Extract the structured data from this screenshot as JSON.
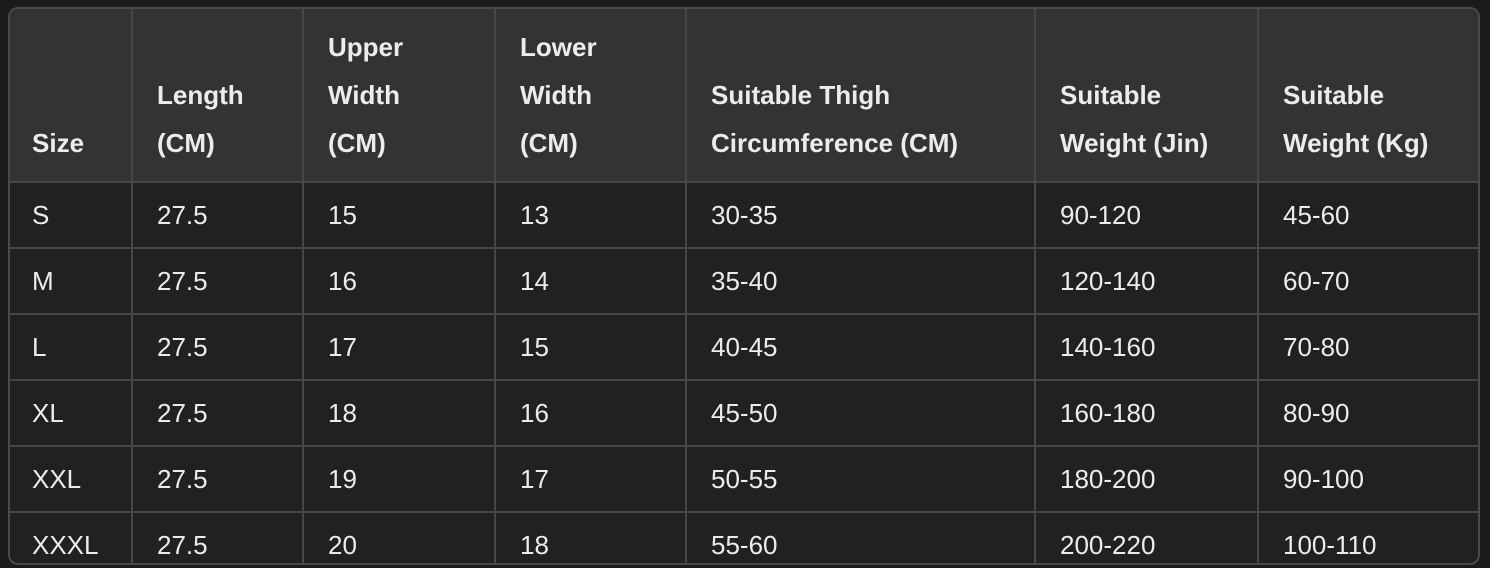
{
  "table": {
    "headers": [
      [
        "Size"
      ],
      [
        "Length",
        "(CM)"
      ],
      [
        "Upper",
        "Width",
        "(CM)"
      ],
      [
        "Lower",
        "Width",
        "(CM)"
      ],
      [
        "Suitable Thigh",
        "Circumference (CM)"
      ],
      [
        "Suitable",
        "Weight (Jin)"
      ],
      [
        "Suitable",
        "Weight (Kg)"
      ]
    ],
    "rows": [
      [
        "S",
        "27.5",
        "15",
        "13",
        "30-35",
        "90-120",
        "45-60"
      ],
      [
        "M",
        "27.5",
        "16",
        "14",
        "35-40",
        "120-140",
        "60-70"
      ],
      [
        "L",
        "27.5",
        "17",
        "15",
        "40-45",
        "140-160",
        "70-80"
      ],
      [
        "XL",
        "27.5",
        "18",
        "16",
        "45-50",
        "160-180",
        "80-90"
      ],
      [
        "XXL",
        "27.5",
        "19",
        "17",
        "50-55",
        "180-200",
        "90-100"
      ],
      [
        "XXXL",
        "27.5",
        "20",
        "18",
        "55-60",
        "200-220",
        "100-110"
      ]
    ]
  }
}
